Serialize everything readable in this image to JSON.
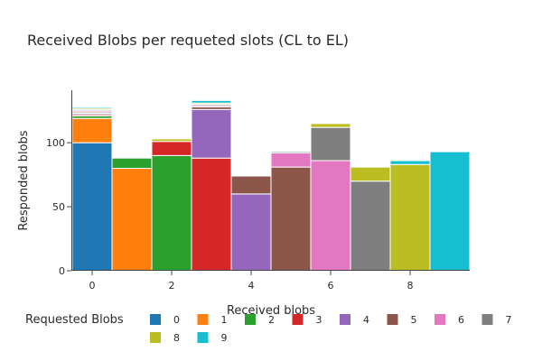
{
  "chart_data": {
    "type": "bar",
    "barmode": "stack",
    "title": "Received Blobs per requeted slots (CL to EL)",
    "xlabel": "Received blobs",
    "ylabel": "Responded blobs",
    "x_ticks": [
      0,
      2,
      4,
      6,
      8
    ],
    "y_ticks": [
      0,
      50,
      100
    ],
    "xlim": [
      -0.5,
      9.5
    ],
    "ylim": [
      0,
      141
    ],
    "legend": {
      "title": "Requested Blobs",
      "placement": "bottom"
    },
    "series": [
      {
        "name": "0",
        "color": "#1f77b4",
        "values": [
          100,
          0,
          0,
          0,
          0,
          0,
          0,
          0,
          0,
          0
        ]
      },
      {
        "name": "1",
        "color": "#ff7f0e",
        "values": [
          19,
          80,
          0,
          0,
          0,
          0,
          0,
          0,
          0,
          0
        ]
      },
      {
        "name": "2",
        "color": "#2ca02c",
        "values": [
          2,
          8,
          90,
          0,
          0,
          0,
          0,
          0,
          0,
          0
        ]
      },
      {
        "name": "3",
        "color": "#d62728",
        "values": [
          1,
          0,
          11,
          88,
          0,
          0,
          0,
          0,
          0,
          0
        ]
      },
      {
        "name": "4",
        "color": "#9467bd",
        "values": [
          1,
          0,
          0,
          38,
          60,
          0,
          0,
          0,
          0,
          0
        ]
      },
      {
        "name": "5",
        "color": "#8c564b",
        "values": [
          1,
          0,
          0,
          2,
          14,
          81,
          0,
          0,
          0,
          0
        ]
      },
      {
        "name": "6",
        "color": "#e377c2",
        "values": [
          1,
          0,
          0,
          1,
          0,
          11,
          86,
          0,
          0,
          0
        ]
      },
      {
        "name": "7",
        "color": "#7f7f7f",
        "values": [
          1,
          0,
          0,
          1,
          0,
          1,
          26,
          70,
          0,
          0
        ]
      },
      {
        "name": "8",
        "color": "#bcbd22",
        "values": [
          1,
          0,
          2,
          1,
          0,
          0,
          3,
          11,
          83,
          0
        ]
      },
      {
        "name": "9",
        "color": "#17becf",
        "values": [
          1,
          0,
          0,
          2,
          0,
          0,
          0,
          0,
          3,
          93
        ]
      }
    ],
    "categories": [
      0,
      1,
      2,
      3,
      4,
      5,
      6,
      7,
      8,
      9
    ]
  }
}
